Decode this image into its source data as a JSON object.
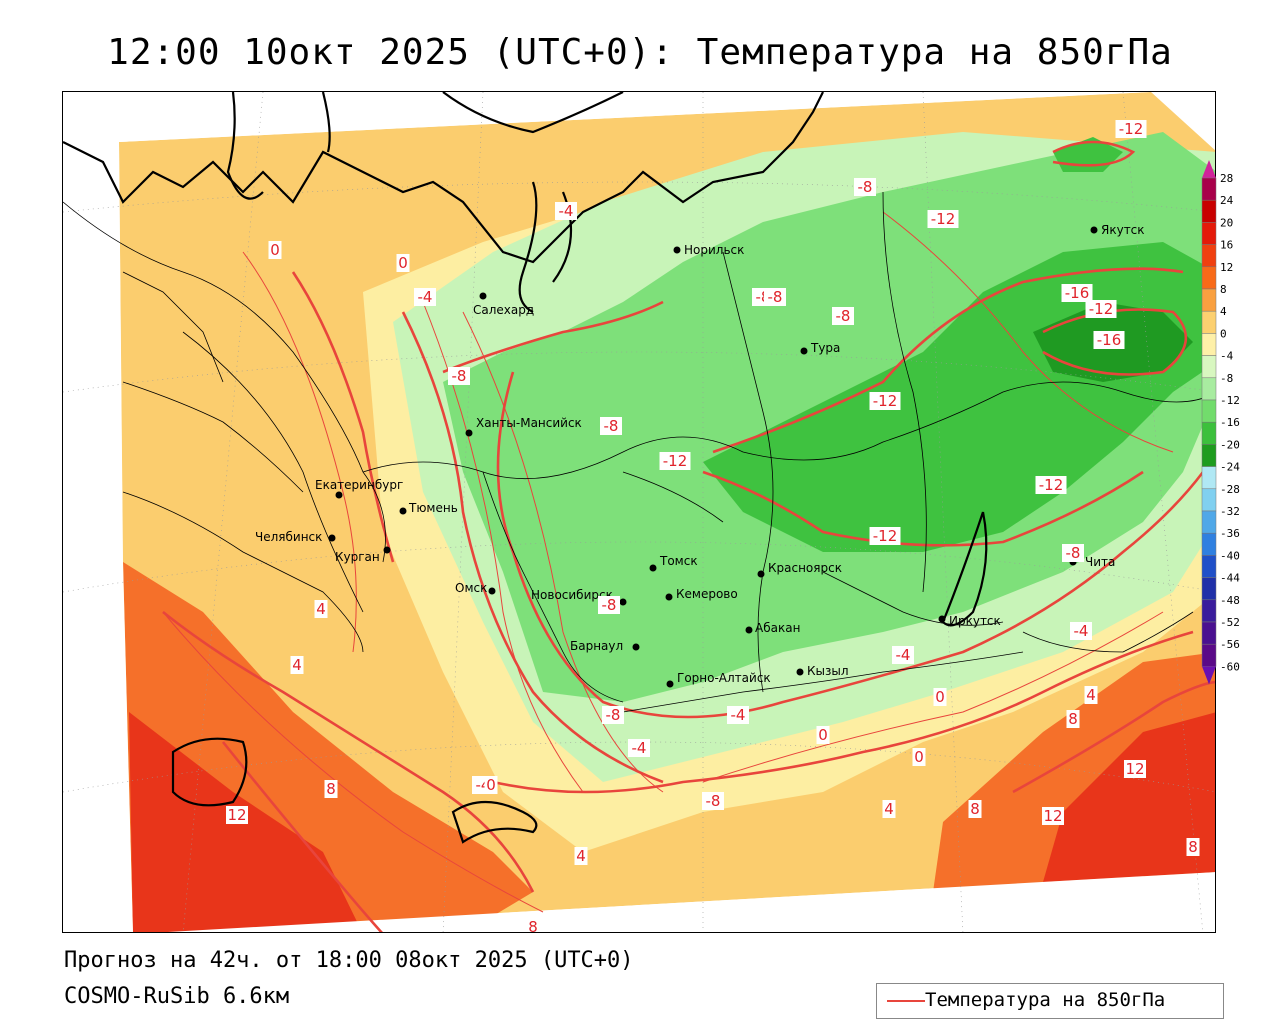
{
  "title": "12:00 10окт 2025 (UTC+0): Температура на 850гПа",
  "footer": {
    "forecast_line": "Прогноз на 42ч. от 18:00 08окт 2025 (UTC+0)",
    "model_line": "COSMO-RuSib 6.6км"
  },
  "legend": {
    "entry_label": "Температура на 850гПа",
    "entry_color": "#e8453c"
  },
  "colorbar": {
    "ticks": [
      "28",
      "24",
      "20",
      "16",
      "12",
      "8",
      "4",
      "0",
      "-4",
      "-8",
      "-12",
      "-16",
      "-20",
      "-24",
      "-28",
      "-32",
      "-36",
      "-40",
      "-44",
      "-48",
      "-52",
      "-56",
      "-60"
    ],
    "colors": [
      "#a8004a",
      "#c80000",
      "#e41a0a",
      "#f04010",
      "#f86a18",
      "#f9a040",
      "#fcd070",
      "#fef0a8",
      "#d8f7c0",
      "#a8eca0",
      "#72dc6c",
      "#3cc03c",
      "#1e9c1e",
      "#b0e8f4",
      "#80d0f0",
      "#50a8e8",
      "#3080e0",
      "#2050c8",
      "#2030a8",
      "#3a1c9c",
      "#4a1090",
      "#5a0a88"
    ],
    "top_arrow_color": "#d0249a",
    "bottom_arrow_color": "#6a10b0"
  },
  "cities": [
    {
      "name": "Норильск"
    },
    {
      "name": "Якутск"
    },
    {
      "name": "Салехард"
    },
    {
      "name": "Тура"
    },
    {
      "name": "Ханты-Мансийск"
    },
    {
      "name": "Екатеринбург"
    },
    {
      "name": "Тюмень"
    },
    {
      "name": "Челябинск"
    },
    {
      "name": "Курган"
    },
    {
      "name": "Омск"
    },
    {
      "name": "Томск"
    },
    {
      "name": "Красноярск"
    },
    {
      "name": "Новосибирск"
    },
    {
      "name": "Кемерово"
    },
    {
      "name": "Барнаул"
    },
    {
      "name": "Абакан"
    },
    {
      "name": "Иркутск"
    },
    {
      "name": "Чита"
    },
    {
      "name": "Кызыл"
    },
    {
      "name": "Горно-Алтайск"
    }
  ],
  "isotherm_labels": [
    "-12",
    "-8",
    "-4",
    "0",
    "-4",
    "-8",
    "-8",
    "-12",
    "-16",
    "-16",
    "-8",
    "-8",
    "-12",
    "-12",
    "-8",
    "-12",
    "-12",
    "-12",
    "-8",
    "4",
    "0",
    "-8",
    "-8",
    "-4",
    "-4",
    "-4",
    "-4",
    "0",
    "0",
    "4",
    "8",
    "8",
    "12",
    "12",
    "8",
    "4",
    "4",
    "4",
    "8",
    "12",
    "8",
    "0",
    "4",
    "0",
    "-4",
    "-8",
    "0"
  ]
}
